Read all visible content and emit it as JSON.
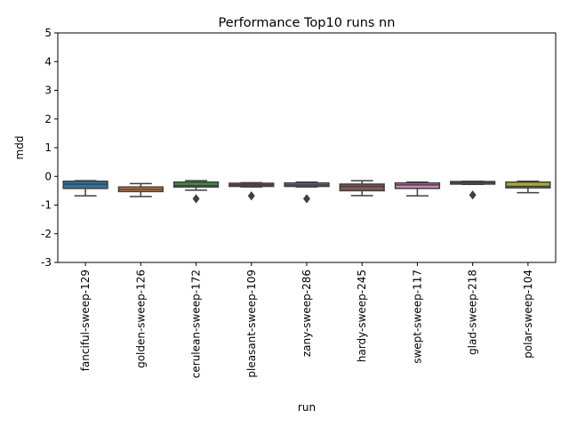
{
  "chart_data": {
    "type": "box",
    "title": "Performance Top10 runs nn",
    "xlabel": "run",
    "ylabel": "mdd",
    "ylim": [
      -3,
      5
    ],
    "yticks": [
      -3,
      -2,
      -1,
      0,
      1,
      2,
      3,
      4,
      5
    ],
    "grid": false,
    "categories": [
      "fanciful-sweep-129",
      "golden-sweep-126",
      "cerulean-sweep-172",
      "pleasant-sweep-109",
      "zany-sweep-286",
      "hardy-sweep-245",
      "swept-sweep-117",
      "glad-sweep-218",
      "polar-sweep-104"
    ],
    "boxes": [
      {
        "q1": -0.42,
        "median": -0.27,
        "q3": -0.17,
        "whisker_low": -0.68,
        "whisker_high": -0.15,
        "outliers": [],
        "color": "#3274a1"
      },
      {
        "q1": -0.53,
        "median": -0.45,
        "q3": -0.37,
        "whisker_low": -0.7,
        "whisker_high": -0.25,
        "outliers": [],
        "color": "#e1812c"
      },
      {
        "q1": -0.37,
        "median": -0.32,
        "q3": -0.2,
        "whisker_low": -0.48,
        "whisker_high": -0.15,
        "outliers": [
          -0.78
        ],
        "color": "#3a923a"
      },
      {
        "q1": -0.35,
        "median": -0.3,
        "q3": -0.24,
        "whisker_low": -0.37,
        "whisker_high": -0.22,
        "outliers": [
          -0.68
        ],
        "color": "#c03d3e"
      },
      {
        "q1": -0.35,
        "median": -0.3,
        "q3": -0.23,
        "whisker_low": -0.37,
        "whisker_high": -0.2,
        "outliers": [
          -0.78
        ],
        "color": "#9372b2"
      },
      {
        "q1": -0.5,
        "median": -0.35,
        "q3": -0.27,
        "whisker_low": -0.67,
        "whisker_high": -0.15,
        "outliers": [],
        "color": "#845b53"
      },
      {
        "q1": -0.42,
        "median": -0.3,
        "q3": -0.23,
        "whisker_low": -0.68,
        "whisker_high": -0.2,
        "outliers": [],
        "color": "#d684bd"
      },
      {
        "q1": -0.27,
        "median": -0.22,
        "q3": -0.18,
        "whisker_low": -0.28,
        "whisker_high": -0.17,
        "outliers": [
          -0.65
        ],
        "color": "#7f7f7f"
      },
      {
        "q1": -0.4,
        "median": -0.35,
        "q3": -0.2,
        "whisker_low": -0.57,
        "whisker_high": -0.17,
        "outliers": [],
        "color": "#a9aa35"
      }
    ]
  }
}
